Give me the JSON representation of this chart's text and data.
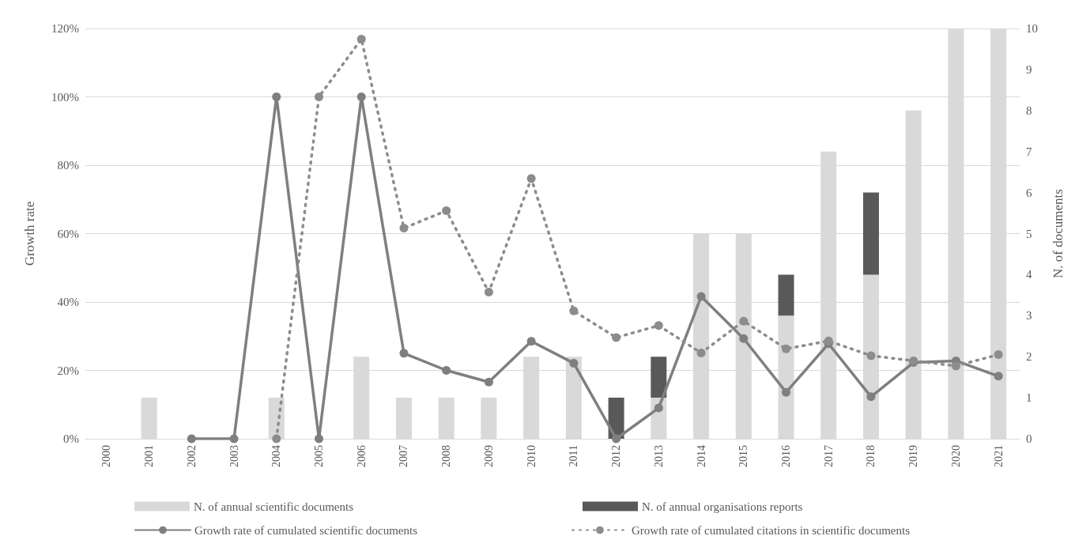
{
  "chart_data": {
    "type": "bar",
    "ylabel": "Growth rate",
    "y2label": "N. of documents",
    "categories": [
      "2000",
      "2001",
      "2002",
      "2003",
      "2004",
      "2005",
      "2006",
      "2007",
      "2008",
      "2009",
      "2010",
      "2011",
      "2012",
      "2013",
      "2014",
      "2015",
      "2016",
      "2017",
      "2018",
      "2019",
      "2020",
      "2021"
    ],
    "stacked": true,
    "series": [
      {
        "name": "N. of annual scientific documents",
        "axis": "y2",
        "color": "#d9d9d9",
        "values": [
          null,
          1,
          null,
          null,
          1,
          null,
          2,
          1,
          1,
          1,
          2,
          2,
          null,
          1,
          5,
          5,
          3,
          7,
          4,
          8,
          10,
          10
        ]
      },
      {
        "name": "N. of annual organisations reports",
        "axis": "y2",
        "color": "#595959",
        "values": [
          null,
          null,
          null,
          null,
          null,
          null,
          null,
          null,
          null,
          null,
          null,
          null,
          1,
          1,
          null,
          null,
          1,
          null,
          2,
          null,
          null,
          null
        ]
      },
      {
        "name": "Growth rate of cumulated scientific documents",
        "type": "line",
        "axis": "y",
        "color": "#7f7f7f",
        "line_style": "solid",
        "values": [
          null,
          null,
          0,
          0,
          100,
          0,
          100,
          25,
          20,
          16.6,
          28.5,
          22.1,
          0,
          9,
          41.6,
          29.3,
          13.6,
          27.8,
          12.3,
          22.3,
          22.8,
          18.3
        ]
      },
      {
        "name": "Growth rate of cumulated citations in scientific documents",
        "type": "line",
        "axis": "y",
        "color": "#8c8c8c",
        "line_style": "dotted",
        "values": [
          null,
          null,
          null,
          null,
          0,
          100,
          116.9,
          61.6,
          66.7,
          42.9,
          76.1,
          37.4,
          29.6,
          33.1,
          25.1,
          34.4,
          26.3,
          28.6,
          24.3,
          22.8,
          21.3,
          24.6
        ]
      }
    ],
    "ylim": [
      0,
      120
    ],
    "yticks": [
      {
        "value": 0,
        "label": "0%"
      },
      {
        "value": 20,
        "label": "20%"
      },
      {
        "value": 40,
        "label": "40%"
      },
      {
        "value": 60,
        "label": "60%"
      },
      {
        "value": 80,
        "label": "80%"
      },
      {
        "value": 100,
        "label": "100%"
      },
      {
        "value": 120,
        "label": "120%"
      }
    ],
    "y2lim": [
      0,
      10
    ],
    "y2ticks": [
      0,
      1,
      2,
      3,
      4,
      5,
      6,
      7,
      8,
      9,
      10
    ],
    "grid": "y",
    "legend": "bottom",
    "marker": "circle"
  }
}
